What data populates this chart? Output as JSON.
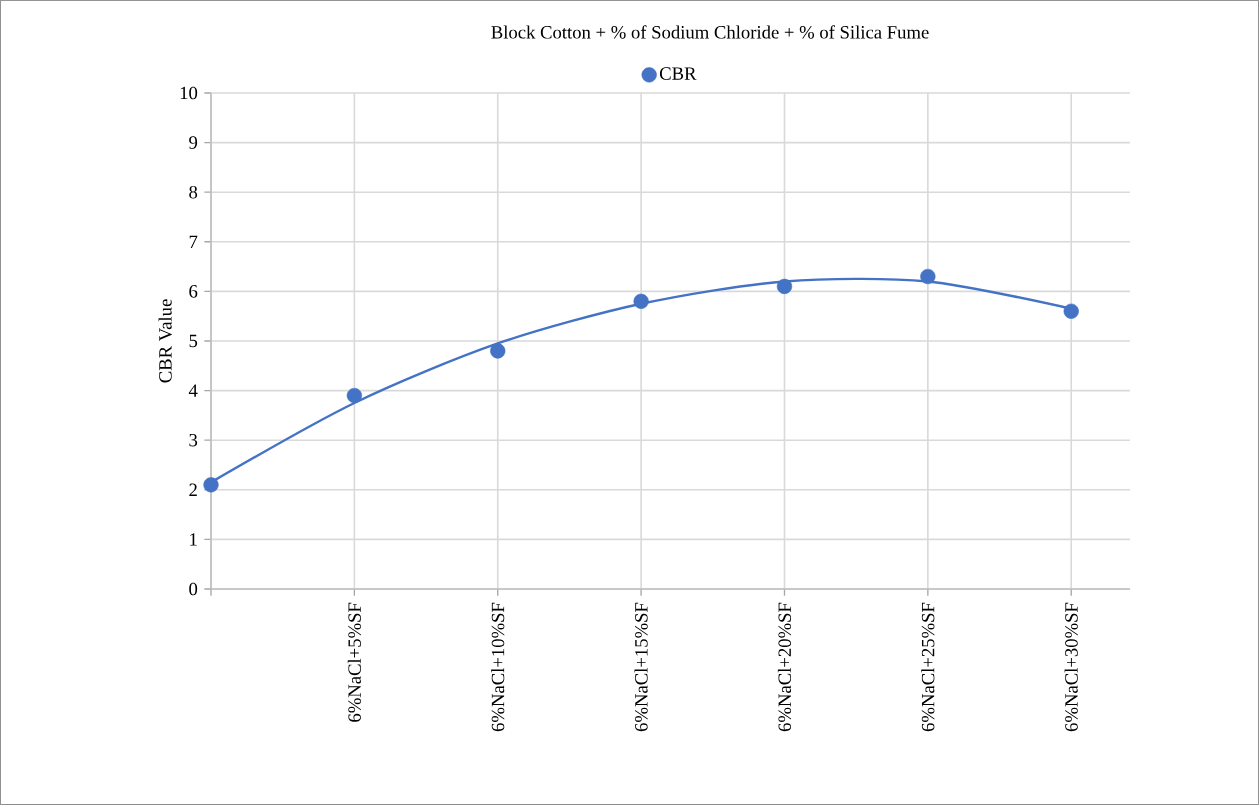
{
  "chart_data": {
    "type": "scatter",
    "title": "Block Cotton + % of Sodium Chloride + % of Silica Fume",
    "ylabel": "CBR Value",
    "categories": [
      null,
      "6%NaCl+5%SF",
      "6%NaCl+10%SF",
      "6%NaCl+15%SF",
      "6%NaCl+20%SF",
      "6%NaCl+25%SF",
      "6%NaCl+30%SF"
    ],
    "series": [
      {
        "name": "CBR",
        "marker": "circle",
        "color": "#4472c4",
        "values": [
          2.1,
          3.9,
          4.8,
          5.8,
          6.1,
          6.3,
          5.6
        ]
      },
      {
        "type": "line",
        "marker": "none",
        "color": "#4472c4",
        "values": [
          2.15,
          3.75,
          4.95,
          5.75,
          6.2,
          6.2,
          5.65
        ]
      }
    ],
    "ylim": [
      0,
      10
    ],
    "yticks": [
      0,
      1,
      2,
      3,
      4,
      5,
      6,
      7,
      8,
      9,
      10
    ],
    "grid": true,
    "legend": "top"
  }
}
